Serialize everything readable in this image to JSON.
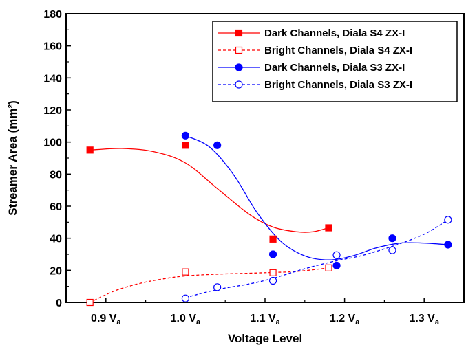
{
  "chart_data": {
    "type": "scatter",
    "xlabel": "Voltage Level",
    "ylabel": "Streamer Area (mm²)",
    "xlim": [
      0.85,
      1.35
    ],
    "ylim": [
      0,
      180
    ],
    "x_ticks": [
      {
        "value": 0.9,
        "label": "0.9 V",
        "sub": "a"
      },
      {
        "value": 1.0,
        "label": "1.0 V",
        "sub": "a"
      },
      {
        "value": 1.1,
        "label": "1.1 V",
        "sub": "a"
      },
      {
        "value": 1.2,
        "label": "1.2 V",
        "sub": "a"
      },
      {
        "value": 1.3,
        "label": "1.3 V",
        "sub": "a"
      }
    ],
    "y_ticks": [
      0,
      20,
      40,
      60,
      80,
      100,
      120,
      140,
      160,
      180
    ],
    "grid": false,
    "legend_position": "top-right",
    "series": [
      {
        "name": "Dark Channels, Diala S4 ZX-I",
        "color": "#ff0000",
        "marker": "square",
        "filled": true,
        "line": "solid",
        "x": [
          0.88,
          1.0,
          1.11,
          1.18
        ],
        "y": [
          95,
          98,
          39.5,
          46.5
        ],
        "curve_x": [
          0.88,
          0.92,
          0.96,
          1.0,
          1.04,
          1.08,
          1.11,
          1.14,
          1.16,
          1.18
        ],
        "curve_y": [
          95,
          96,
          94,
          87,
          71,
          55,
          47,
          44,
          44,
          46.5
        ]
      },
      {
        "name": "Bright Channels, Diala S4 ZX-I",
        "color": "#ff0000",
        "marker": "square",
        "filled": false,
        "line": "dashed",
        "x": [
          0.88,
          1.0,
          1.11,
          1.18
        ],
        "y": [
          0,
          19,
          18.5,
          21.5
        ],
        "curve_x": [
          0.88,
          0.91,
          0.94,
          0.97,
          1.0,
          1.04,
          1.08,
          1.11,
          1.14,
          1.18
        ],
        "curve_y": [
          0,
          7,
          11.5,
          14.5,
          16.5,
          17.6,
          18.2,
          18.7,
          19.3,
          21.5
        ]
      },
      {
        "name": "Dark Channels, Diala S3 ZX-I",
        "color": "#0000ff",
        "marker": "circle",
        "filled": true,
        "line": "solid",
        "x": [
          1.0,
          1.04,
          1.11,
          1.19,
          1.26,
          1.33
        ],
        "y": [
          104,
          98,
          30,
          23,
          40,
          36
        ],
        "curve_x": [
          1.0,
          1.03,
          1.06,
          1.09,
          1.12,
          1.15,
          1.18,
          1.21,
          1.24,
          1.27,
          1.3,
          1.33
        ],
        "curve_y": [
          104,
          97,
          80,
          56,
          38,
          29,
          26.5,
          29,
          34,
          37,
          37,
          36
        ]
      },
      {
        "name": "Bright Channels, Diala S3 ZX-I",
        "color": "#0000ff",
        "marker": "circle",
        "filled": false,
        "line": "dashed",
        "x": [
          1.0,
          1.04,
          1.11,
          1.19,
          1.26,
          1.33
        ],
        "y": [
          2.5,
          9.5,
          13.5,
          29.5,
          32.5,
          51.5
        ],
        "curve_x": [
          1.0,
          1.04,
          1.08,
          1.11,
          1.15,
          1.19,
          1.22,
          1.26,
          1.3,
          1.33
        ],
        "curve_y": [
          3,
          8,
          11.5,
          15,
          21,
          26,
          29,
          35,
          42.5,
          51.5
        ]
      }
    ]
  }
}
